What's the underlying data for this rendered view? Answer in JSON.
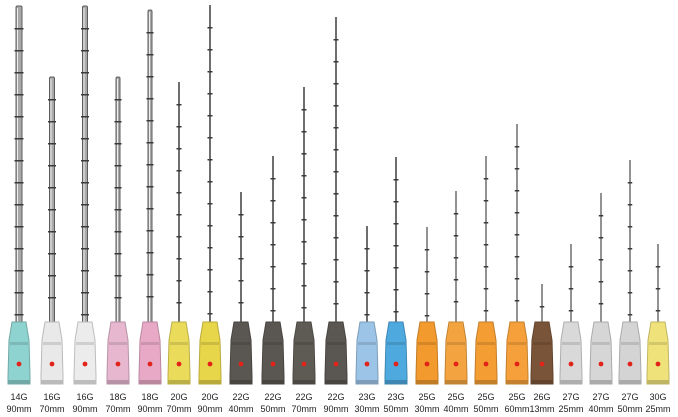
{
  "needles": [
    {
      "gauge": "14G",
      "length": "90mm",
      "hub": "#8ed3cf"
    },
    {
      "gauge": "16G",
      "length": "70mm",
      "hub": "#e9e9e9"
    },
    {
      "gauge": "16G",
      "length": "90mm",
      "hub": "#ececec"
    },
    {
      "gauge": "18G",
      "length": "70mm",
      "hub": "#e6b7cf"
    },
    {
      "gauge": "18G",
      "length": "90mm",
      "hub": "#e8a9c7"
    },
    {
      "gauge": "20G",
      "length": "70mm",
      "hub": "#eadb5a"
    },
    {
      "gauge": "20G",
      "length": "90mm",
      "hub": "#e7d54a"
    },
    {
      "gauge": "22G",
      "length": "40mm",
      "hub": "#5a5651"
    },
    {
      "gauge": "22G",
      "length": "50mm",
      "hub": "#5a5651"
    },
    {
      "gauge": "22G",
      "length": "70mm",
      "hub": "#5e5a54"
    },
    {
      "gauge": "22G",
      "length": "90mm",
      "hub": "#5a5651"
    },
    {
      "gauge": "23G",
      "length": "30mm",
      "hub": "#9cc4e6"
    },
    {
      "gauge": "23G",
      "length": "50mm",
      "hub": "#4ea9de"
    },
    {
      "gauge": "25G",
      "length": "30mm",
      "hub": "#f29a2e"
    },
    {
      "gauge": "25G",
      "length": "40mm",
      "hub": "#f3a440"
    },
    {
      "gauge": "25G",
      "length": "50mm",
      "hub": "#f39d33"
    },
    {
      "gauge": "25G",
      "length": "60mm",
      "hub": "#f5a03a"
    },
    {
      "gauge": "26G",
      "length": "13mm",
      "hub": "#7a5438"
    },
    {
      "gauge": "27G",
      "length": "25mm",
      "hub": "#d9d9d9"
    },
    {
      "gauge": "27G",
      "length": "40mm",
      "hub": "#d6d6d6"
    },
    {
      "gauge": "27G",
      "length": "50mm",
      "hub": "#d4d4d4"
    },
    {
      "gauge": "30G",
      "length": "25mm",
      "hub": "#f0e27a"
    }
  ],
  "colors": {
    "shaft": "#6e6e6e",
    "shaft_tick": "#3a3a3a",
    "hub_dot": "#e2231a",
    "background": "#ffffff"
  }
}
